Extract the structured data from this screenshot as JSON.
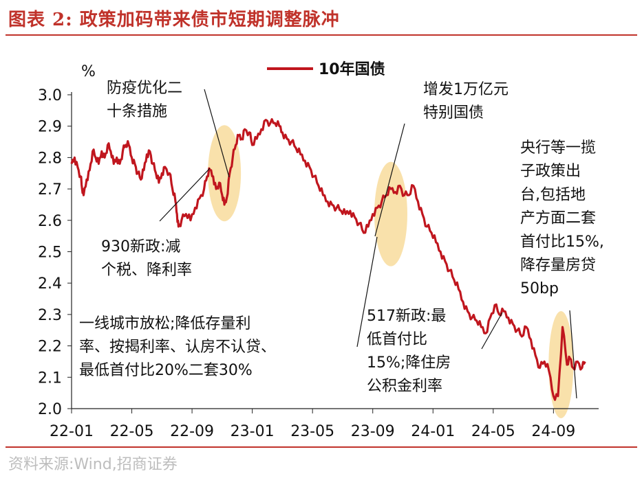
{
  "header": {
    "title": "图表 2:  政策加码带来债市短期调整脉冲"
  },
  "source": "资料来源:Wind,招商证券",
  "colors": {
    "series": "#c0161e",
    "highlight": "#f8dc9c",
    "title": "#c0322a"
  },
  "chart_data": {
    "type": "line",
    "title": "政策加码带来债市短期调整脉冲",
    "ylabel": "%",
    "ylim": [
      2.0,
      3.0
    ],
    "yticks": [
      "2.0",
      "2.1",
      "2.2",
      "2.3",
      "2.4",
      "2.5",
      "2.6",
      "2.7",
      "2.8",
      "2.9",
      "3.0"
    ],
    "xticks": [
      "22-01",
      "22-05",
      "22-09",
      "23-01",
      "23-05",
      "23-09",
      "24-01",
      "24-05",
      "24-09"
    ],
    "legend": "10年国债",
    "series": [
      {
        "name": "10年国债",
        "points": [
          [
            0,
            2.78
          ],
          [
            0.2,
            2.8
          ],
          [
            0.4,
            2.77
          ],
          [
            0.6,
            2.74
          ],
          [
            0.7,
            2.7
          ],
          [
            0.8,
            2.68
          ],
          [
            1.0,
            2.73
          ],
          [
            1.2,
            2.76
          ],
          [
            1.4,
            2.82
          ],
          [
            1.6,
            2.8
          ],
          [
            1.8,
            2.78
          ],
          [
            2.0,
            2.82
          ],
          [
            2.2,
            2.8
          ],
          [
            2.4,
            2.84
          ],
          [
            2.6,
            2.82
          ],
          [
            2.8,
            2.78
          ],
          [
            3.0,
            2.8
          ],
          [
            3.2,
            2.78
          ],
          [
            3.4,
            2.82
          ],
          [
            3.6,
            2.84
          ],
          [
            3.8,
            2.84
          ],
          [
            4.0,
            2.8
          ],
          [
            4.2,
            2.78
          ],
          [
            4.4,
            2.75
          ],
          [
            4.6,
            2.73
          ],
          [
            4.8,
            2.76
          ],
          [
            5.0,
            2.81
          ],
          [
            5.2,
            2.82
          ],
          [
            5.4,
            2.78
          ],
          [
            5.6,
            2.75
          ],
          [
            5.8,
            2.72
          ],
          [
            6.0,
            2.75
          ],
          [
            6.2,
            2.77
          ],
          [
            6.5,
            2.75
          ],
          [
            6.7,
            2.7
          ],
          [
            6.9,
            2.66
          ],
          [
            7.0,
            2.62
          ],
          [
            7.1,
            2.58
          ],
          [
            7.3,
            2.6
          ],
          [
            7.6,
            2.62
          ],
          [
            7.9,
            2.6
          ],
          [
            8.2,
            2.64
          ],
          [
            8.5,
            2.67
          ],
          [
            8.8,
            2.7
          ],
          [
            9.0,
            2.74
          ],
          [
            9.2,
            2.76
          ],
          [
            9.4,
            2.74
          ],
          [
            9.6,
            2.7
          ],
          [
            9.8,
            2.72
          ],
          [
            10.0,
            2.68
          ],
          [
            10.15,
            2.65
          ],
          [
            10.3,
            2.67
          ],
          [
            10.5,
            2.75
          ],
          [
            10.7,
            2.8
          ],
          [
            10.9,
            2.84
          ],
          [
            11.1,
            2.87
          ],
          [
            11.3,
            2.86
          ],
          [
            11.5,
            2.89
          ],
          [
            11.8,
            2.88
          ],
          [
            12.0,
            2.84
          ],
          [
            12.3,
            2.86
          ],
          [
            12.6,
            2.89
          ],
          [
            12.9,
            2.92
          ],
          [
            13.2,
            2.91
          ],
          [
            13.5,
            2.91
          ],
          [
            13.8,
            2.9
          ],
          [
            14.0,
            2.88
          ],
          [
            14.3,
            2.86
          ],
          [
            14.6,
            2.85
          ],
          [
            14.9,
            2.83
          ],
          [
            15.2,
            2.81
          ],
          [
            15.5,
            2.79
          ],
          [
            15.8,
            2.77
          ],
          [
            16.1,
            2.74
          ],
          [
            16.4,
            2.71
          ],
          [
            16.7,
            2.68
          ],
          [
            17.0,
            2.66
          ],
          [
            17.3,
            2.65
          ],
          [
            17.6,
            2.64
          ],
          [
            17.9,
            2.63
          ],
          [
            18.2,
            2.62
          ],
          [
            18.5,
            2.63
          ],
          [
            18.8,
            2.61
          ],
          [
            19.1,
            2.59
          ],
          [
            19.4,
            2.56
          ],
          [
            19.7,
            2.58
          ],
          [
            20.0,
            2.62
          ],
          [
            20.3,
            2.64
          ],
          [
            20.6,
            2.66
          ],
          [
            20.9,
            2.68
          ],
          [
            21.2,
            2.7
          ],
          [
            21.5,
            2.69
          ],
          [
            21.8,
            2.71
          ],
          [
            22.1,
            2.68
          ],
          [
            22.4,
            2.68
          ],
          [
            22.7,
            2.71
          ],
          [
            23.0,
            2.66
          ],
          [
            23.3,
            2.62
          ],
          [
            23.6,
            2.58
          ],
          [
            23.9,
            2.56
          ],
          [
            24.2,
            2.53
          ],
          [
            24.5,
            2.5
          ],
          [
            24.8,
            2.47
          ],
          [
            25.1,
            2.44
          ],
          [
            25.4,
            2.41
          ],
          [
            25.7,
            2.38
          ],
          [
            26.0,
            2.34
          ],
          [
            26.3,
            2.31
          ],
          [
            26.6,
            2.29
          ],
          [
            26.9,
            2.28
          ],
          [
            27.2,
            2.26
          ],
          [
            27.5,
            2.24
          ],
          [
            27.8,
            2.29
          ],
          [
            28.1,
            2.33
          ],
          [
            28.4,
            2.3
          ],
          [
            28.7,
            2.31
          ],
          [
            29.0,
            2.29
          ],
          [
            29.3,
            2.27
          ],
          [
            29.6,
            2.25
          ],
          [
            29.9,
            2.23
          ],
          [
            30.2,
            2.26
          ],
          [
            30.5,
            2.22
          ],
          [
            30.8,
            2.17
          ],
          [
            31.1,
            2.13
          ],
          [
            31.4,
            2.15
          ],
          [
            31.7,
            2.12
          ],
          [
            32.0,
            2.04
          ],
          [
            32.3,
            2.04
          ],
          [
            32.6,
            2.26
          ],
          [
            32.9,
            2.14
          ],
          [
            33.1,
            2.16
          ],
          [
            33.3,
            2.13
          ],
          [
            33.6,
            2.15
          ],
          [
            33.9,
            2.13
          ],
          [
            34.1,
            2.15
          ]
        ]
      }
    ],
    "highlights": [
      {
        "x": 10.15,
        "y": 2.75
      },
      {
        "x": 21.2,
        "y": 2.62
      },
      {
        "x": 32.5,
        "y": 2.14
      }
    ],
    "annotations": [
      {
        "lines": [
          "防疫优化二",
          "十条措施"
        ]
      },
      {
        "lines": [
          "930新政:减",
          "个税、降利率"
        ]
      },
      {
        "lines": [
          "一线城市放松;降低存量利",
          "率、按揭利率、认房不认贷、",
          "最低首付比20%二套30%"
        ]
      },
      {
        "lines": [
          "增发1万亿元",
          "特别国债"
        ]
      },
      {
        "lines": [
          "517新政:最",
          "低首付比",
          "15%;降住房",
          "公积金利率"
        ]
      },
      {
        "lines": [
          "央行等一揽",
          "子政策出",
          "台,包括地",
          "产方面二套",
          "首付比15%,",
          "降存量房贷",
          "50bp"
        ]
      }
    ]
  }
}
